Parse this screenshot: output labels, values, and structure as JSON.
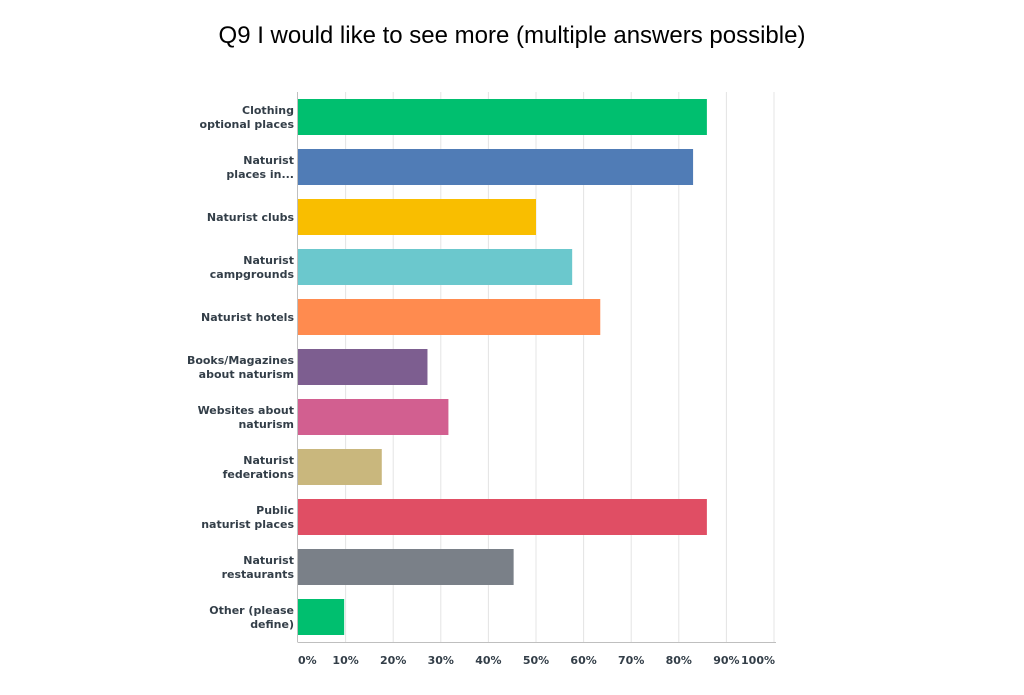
{
  "chart_data": {
    "type": "bar",
    "orientation": "horizontal",
    "title": "Q9 I would like to see more (multiple answers possible)",
    "categories": [
      [
        "Clothing",
        "optional places"
      ],
      [
        "Naturist",
        "places in..."
      ],
      [
        "Naturist clubs"
      ],
      [
        "Naturist",
        "campgrounds"
      ],
      [
        "Naturist hotels"
      ],
      [
        "Books/Magazines",
        "about naturism"
      ],
      [
        "Websites about",
        "naturism"
      ],
      [
        "Naturist",
        "federations"
      ],
      [
        "Public",
        "naturist places"
      ],
      [
        "Naturist",
        "restaurants"
      ],
      [
        "Other (please",
        "define)"
      ]
    ],
    "values": [
      85.9,
      83.0,
      50.0,
      57.6,
      63.5,
      27.2,
      31.6,
      17.6,
      85.9,
      45.3,
      9.7
    ],
    "colors": [
      "#00bf6f",
      "#507cb6",
      "#f9be00",
      "#6bc8cd",
      "#ff8b4f",
      "#7d5e90",
      "#d25f90",
      "#c9b77d",
      "#e04e64",
      "#7a8088",
      "#00bf6f"
    ],
    "xlim": [
      0,
      100
    ],
    "xticks": [
      "0%",
      "10%",
      "20%",
      "30%",
      "40%",
      "50%",
      "60%",
      "70%",
      "80%",
      "90%",
      "100%"
    ],
    "grid": true,
    "legend": "none"
  }
}
